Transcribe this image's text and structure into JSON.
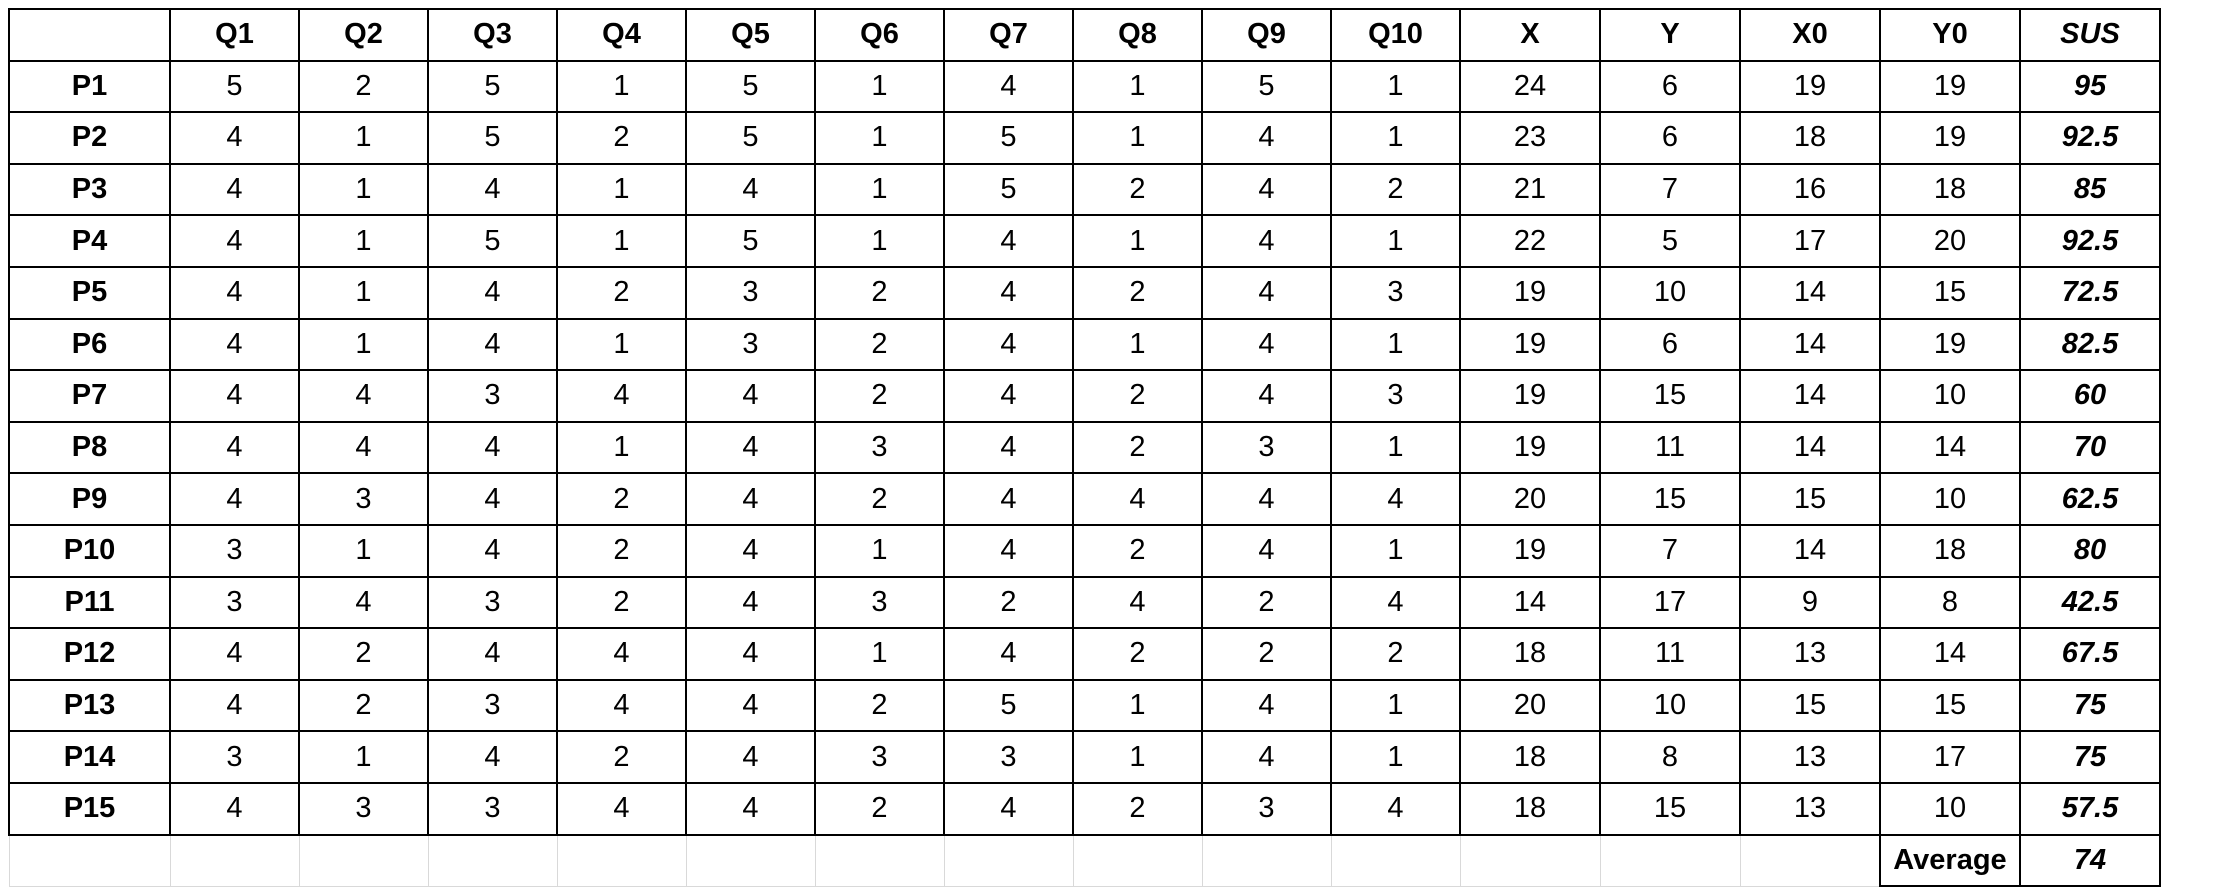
{
  "table": {
    "corner": "",
    "headers": [
      "Q1",
      "Q2",
      "Q3",
      "Q4",
      "Q5",
      "Q6",
      "Q7",
      "Q8",
      "Q9",
      "Q10",
      "X",
      "Y",
      "X0",
      "Y0",
      "SUS"
    ],
    "rows": [
      {
        "label": "P1",
        "cells": [
          "5",
          "2",
          "5",
          "1",
          "5",
          "1",
          "4",
          "1",
          "5",
          "1",
          "24",
          "6",
          "19",
          "19",
          "95"
        ]
      },
      {
        "label": "P2",
        "cells": [
          "4",
          "1",
          "5",
          "2",
          "5",
          "1",
          "5",
          "1",
          "4",
          "1",
          "23",
          "6",
          "18",
          "19",
          "92.5"
        ]
      },
      {
        "label": "P3",
        "cells": [
          "4",
          "1",
          "4",
          "1",
          "4",
          "1",
          "5",
          "2",
          "4",
          "2",
          "21",
          "7",
          "16",
          "18",
          "85"
        ]
      },
      {
        "label": "P4",
        "cells": [
          "4",
          "1",
          "5",
          "1",
          "5",
          "1",
          "4",
          "1",
          "4",
          "1",
          "22",
          "5",
          "17",
          "20",
          "92.5"
        ]
      },
      {
        "label": "P5",
        "cells": [
          "4",
          "1",
          "4",
          "2",
          "3",
          "2",
          "4",
          "2",
          "4",
          "3",
          "19",
          "10",
          "14",
          "15",
          "72.5"
        ]
      },
      {
        "label": "P6",
        "cells": [
          "4",
          "1",
          "4",
          "1",
          "3",
          "2",
          "4",
          "1",
          "4",
          "1",
          "19",
          "6",
          "14",
          "19",
          "82.5"
        ]
      },
      {
        "label": "P7",
        "cells": [
          "4",
          "4",
          "3",
          "4",
          "4",
          "2",
          "4",
          "2",
          "4",
          "3",
          "19",
          "15",
          "14",
          "10",
          "60"
        ]
      },
      {
        "label": "P8",
        "cells": [
          "4",
          "4",
          "4",
          "1",
          "4",
          "3",
          "4",
          "2",
          "3",
          "1",
          "19",
          "11",
          "14",
          "14",
          "70"
        ]
      },
      {
        "label": "P9",
        "cells": [
          "4",
          "3",
          "4",
          "2",
          "4",
          "2",
          "4",
          "4",
          "4",
          "4",
          "20",
          "15",
          "15",
          "10",
          "62.5"
        ]
      },
      {
        "label": "P10",
        "cells": [
          "3",
          "1",
          "4",
          "2",
          "4",
          "1",
          "4",
          "2",
          "4",
          "1",
          "19",
          "7",
          "14",
          "18",
          "80"
        ]
      },
      {
        "label": "P11",
        "cells": [
          "3",
          "4",
          "3",
          "2",
          "4",
          "3",
          "2",
          "4",
          "2",
          "4",
          "14",
          "17",
          "9",
          "8",
          "42.5"
        ]
      },
      {
        "label": "P12",
        "cells": [
          "4",
          "2",
          "4",
          "4",
          "4",
          "1",
          "4",
          "2",
          "2",
          "2",
          "18",
          "11",
          "13",
          "14",
          "67.5"
        ]
      },
      {
        "label": "P13",
        "cells": [
          "4",
          "2",
          "3",
          "4",
          "4",
          "2",
          "5",
          "1",
          "4",
          "1",
          "20",
          "10",
          "15",
          "15",
          "75"
        ]
      },
      {
        "label": "P14",
        "cells": [
          "3",
          "1",
          "4",
          "2",
          "4",
          "3",
          "3",
          "1",
          "4",
          "1",
          "18",
          "8",
          "13",
          "17",
          "75"
        ]
      },
      {
        "label": "P15",
        "cells": [
          "4",
          "3",
          "3",
          "4",
          "4",
          "2",
          "4",
          "2",
          "3",
          "4",
          "18",
          "15",
          "13",
          "10",
          "57.5"
        ]
      }
    ],
    "footer": {
      "average_label": "Average",
      "average_value": "74"
    }
  }
}
